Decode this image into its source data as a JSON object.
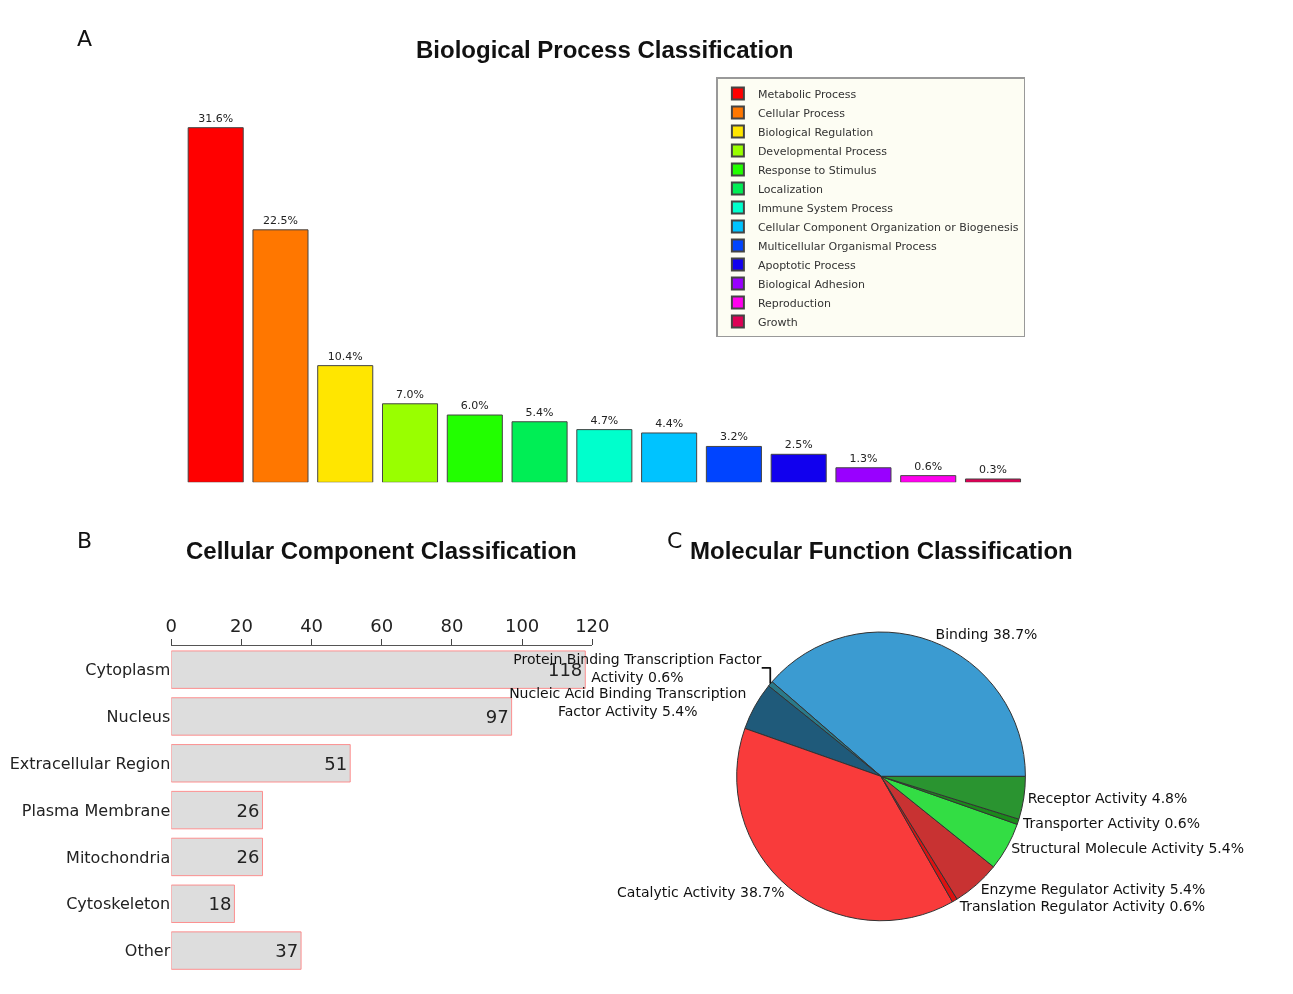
{
  "chart_data": [
    {
      "type": "bar",
      "title": "Biological Process Classification",
      "annotations": [
        "A"
      ],
      "legend": "top right",
      "categories": [
        null
      ],
      "series": [
        {
          "name": "Metabolic Process",
          "color": "#ff0000",
          "values": [
            31.6
          ],
          "value_labels": [
            "31.6%"
          ]
        },
        {
          "name": "Cellular Process",
          "color": "#ff7700",
          "values": [
            22.5
          ],
          "value_labels": [
            "22.5%"
          ]
        },
        {
          "name": "Biological Regulation",
          "color": "#ffe600",
          "values": [
            10.4
          ],
          "value_labels": [
            "10.4%"
          ]
        },
        {
          "name": "Developmental Process",
          "color": "#99ff00",
          "values": [
            7.0
          ],
          "value_labels": [
            "7.0%"
          ]
        },
        {
          "name": "Response to Stimulus",
          "color": "#22ff00",
          "values": [
            6.0
          ],
          "value_labels": [
            "6.0%"
          ]
        },
        {
          "name": "Localization",
          "color": "#00ee55",
          "values": [
            5.4
          ],
          "value_labels": [
            "5.4%"
          ]
        },
        {
          "name": "Immune System Process",
          "color": "#00ffcc",
          "values": [
            4.7
          ],
          "value_labels": [
            "4.7%"
          ]
        },
        {
          "name": "Cellular Component Organization or Biogenesis",
          "color": "#00c3ff",
          "values": [
            4.4
          ],
          "value_labels": [
            "4.4%"
          ]
        },
        {
          "name": "Multicellular Organismal Process",
          "color": "#0044ff",
          "values": [
            3.2
          ],
          "value_labels": [
            "3.2%"
          ]
        },
        {
          "name": "Apoptotic Process",
          "color": "#1100ee",
          "values": [
            2.5
          ],
          "value_labels": [
            "2.5%"
          ]
        },
        {
          "name": "Biological Adhesion",
          "color": "#9900ff",
          "values": [
            1.3
          ],
          "value_labels": [
            "1.3%"
          ]
        },
        {
          "name": "Reproduction",
          "color": "#ff00ee",
          "values": [
            0.6
          ],
          "value_labels": [
            "0.6%"
          ]
        },
        {
          "name": "Growth",
          "color": "#dd0055",
          "values": [
            0.3
          ],
          "value_labels": [
            "0.3%"
          ]
        }
      ]
    },
    {
      "type": "bar",
      "title": "Cellular Component Classification",
      "annotations": [
        "B"
      ],
      "orientation": "horizontal",
      "categories": [
        "Cytoplasm",
        "Nucleus",
        "Extracellular Region",
        "Plasma Membrane",
        "Mitochondria",
        "Cytoskeleton",
        "Other"
      ],
      "values": [
        118,
        97,
        51,
        26,
        26,
        18,
        37
      ],
      "color": "#dddddd",
      "data_labels": true,
      "xlim": [
        0,
        120
      ],
      "xticks": [
        0,
        20,
        40,
        60,
        80,
        100,
        120
      ]
    },
    {
      "type": "pie",
      "title": "Molecular Function Classification",
      "annotations": [
        "C"
      ],
      "categories": [
        "Binding",
        "Protein Binding Transcription Factor Activity",
        "Nucleic Acid Binding Transcription Factor Activity",
        "Catalytic Activity",
        "Translation Regulator Activity",
        "Enzyme Regulator Activity",
        "Structural Molecule Activity",
        "Transporter Activity",
        "Receptor Activity"
      ],
      "values": [
        38.7,
        0.6,
        5.4,
        38.7,
        0.6,
        5.4,
        5.4,
        0.6,
        4.8
      ],
      "value_labels": [
        "38.7%",
        "0.6%",
        "5.4%",
        "38.7%",
        "0.6%",
        "5.4%",
        "5.4%",
        "0.6%",
        "4.8%"
      ],
      "colors": [
        "#3b9bd1",
        "#2a7a8a",
        "#1f5a7a",
        "#f93b3b",
        "#dd1111",
        "#c83232",
        "#33dd44",
        "#1a8a1a",
        "#2a9430"
      ]
    }
  ]
}
